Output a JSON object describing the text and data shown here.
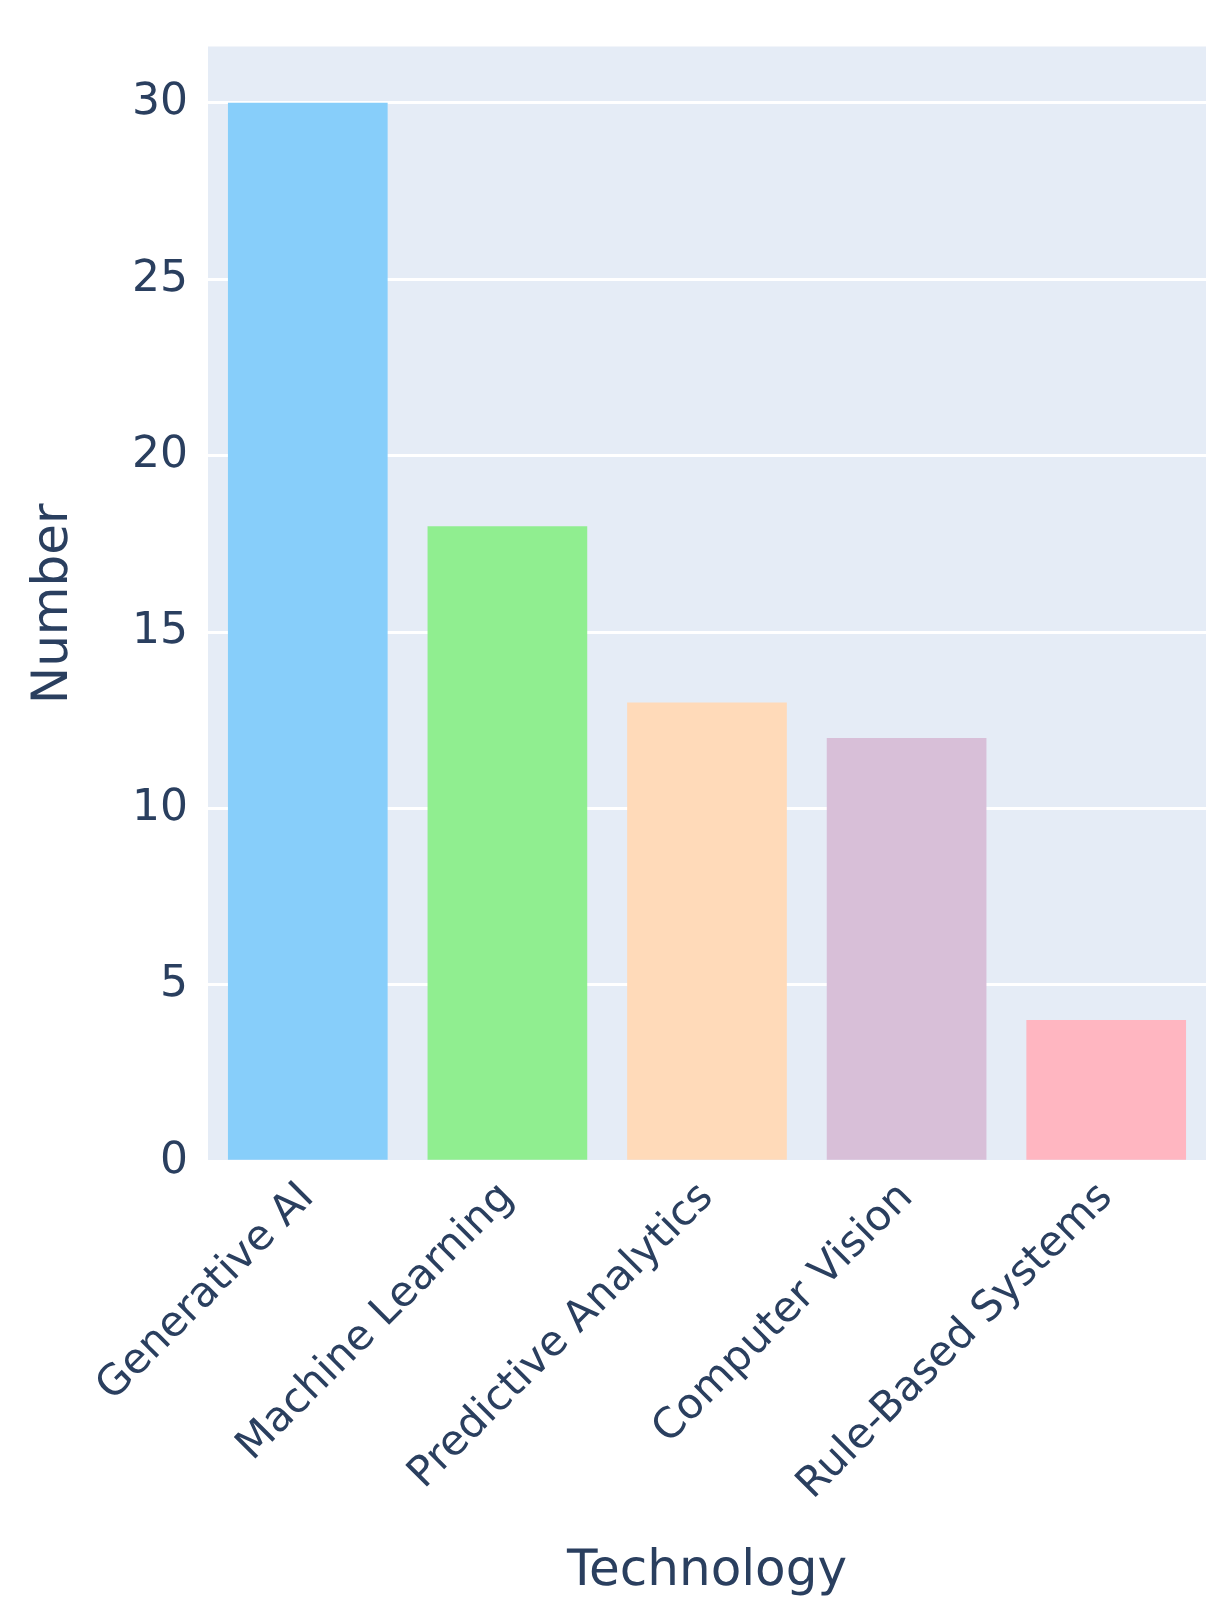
{
  "chart_data": {
    "type": "bar",
    "xlabel": "Technology",
    "ylabel": "Number",
    "categories": [
      "Generative AI",
      "Machine Learning",
      "Predictive Analytics",
      "Computer Vision",
      "Rule-Based Systems"
    ],
    "values": [
      30,
      18,
      13,
      12,
      4
    ],
    "colors": [
      "#87cefa",
      "#90ee90",
      "#ffdab9",
      "#d8bfd8",
      "#ffb6c1"
    ],
    "ylim": [
      0,
      31.6
    ],
    "yticks": [
      0,
      5,
      10,
      15,
      20,
      25,
      30
    ],
    "grid": "y",
    "legend": false
  }
}
